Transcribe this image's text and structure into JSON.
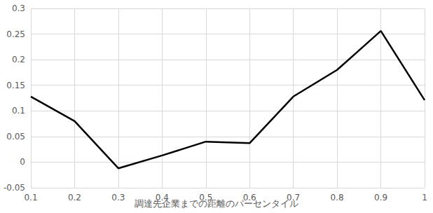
{
  "chart_data": {
    "type": "line",
    "x_label": "調達先企業までの距離のパーセンタイル",
    "x": [
      0.1,
      0.2,
      0.3,
      0.4,
      0.5,
      0.6,
      0.7,
      0.8,
      0.9,
      1
    ],
    "values": [
      0.128,
      0.08,
      -0.012,
      0.013,
      0.04,
      0.037,
      0.128,
      0.18,
      0.256,
      0.121
    ],
    "color": "#000000",
    "xlim": [
      0.1,
      1
    ],
    "xticks": [
      0.1,
      0.2,
      0.3,
      0.4,
      0.5,
      0.6,
      0.7,
      0.8,
      0.9,
      1
    ],
    "ylim": [
      -0.05,
      0.3
    ],
    "yticks": [
      -0.05,
      0,
      0.05,
      0.1,
      0.15,
      0.2,
      0.25,
      0.3
    ],
    "grid": true
  }
}
